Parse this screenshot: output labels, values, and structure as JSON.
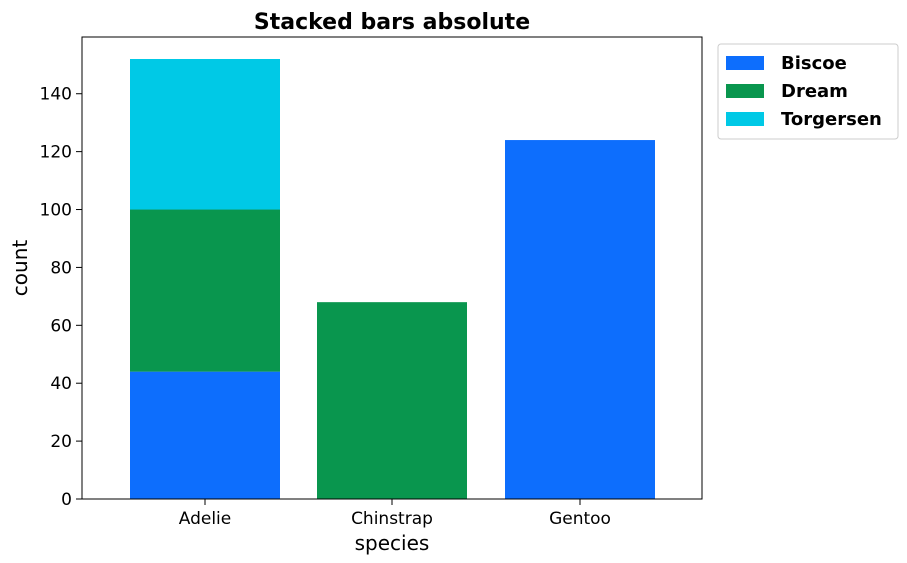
{
  "chart_data": {
    "type": "bar",
    "stacked": true,
    "title": "Stacked bars absolute",
    "xlabel": "species",
    "ylabel": "count",
    "categories": [
      "Adelie",
      "Chinstrap",
      "Gentoo"
    ],
    "series": [
      {
        "name": "Biscoe",
        "color": "#0d6efd",
        "values": [
          44,
          0,
          124
        ]
      },
      {
        "name": "Dream",
        "color": "#09964e",
        "values": [
          56,
          68,
          0
        ]
      },
      {
        "name": "Torgersen",
        "color": "#00c9e6",
        "values": [
          52,
          0,
          0
        ]
      }
    ],
    "ylim": [
      0,
      159.6
    ],
    "yticks": [
      0,
      20,
      40,
      60,
      80,
      100,
      120,
      140
    ],
    "legend_position": "outside-top-right",
    "grid": false
  }
}
